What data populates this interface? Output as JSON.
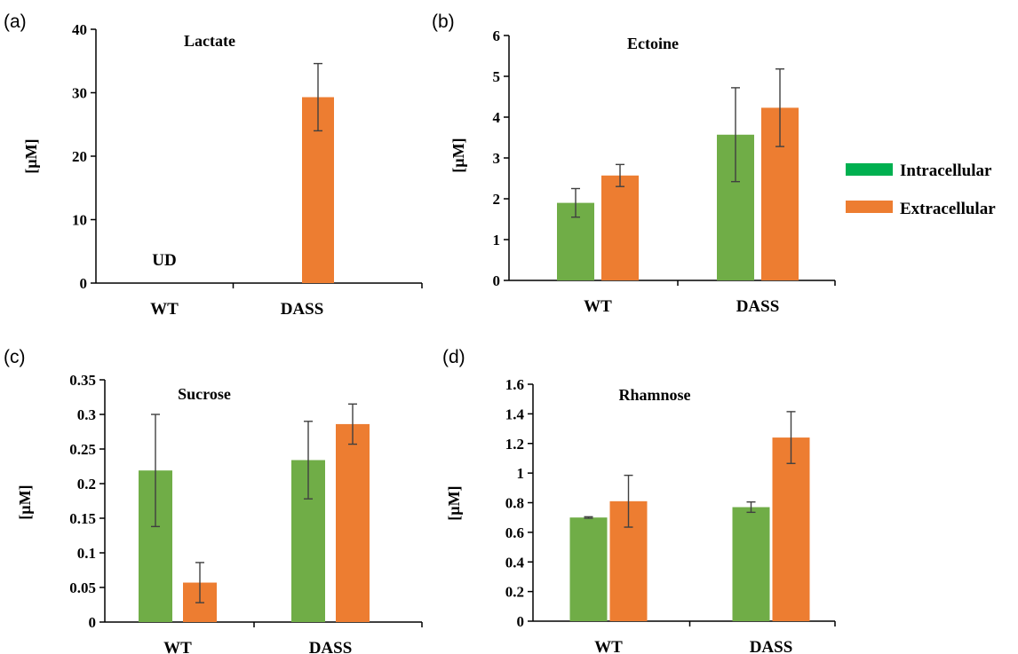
{
  "legend": {
    "items": [
      {
        "label": "Intracellular",
        "color": "#00B050"
      },
      {
        "label": "Extracellular",
        "color": "#ED7D31"
      }
    ]
  },
  "colors": {
    "intracellular": "#70AD47",
    "extracellular": "#ED7D31",
    "error_bar": "#404040"
  },
  "chart_data": [
    {
      "panel": "(a)",
      "type": "bar",
      "title": "Lactate",
      "ylabel": "[µM]",
      "categories": [
        "WT",
        "DASS"
      ],
      "ylim": [
        0,
        40
      ],
      "yticks": [
        "0",
        "10",
        "20",
        "30",
        "40"
      ],
      "series": [
        {
          "name": "Intracellular",
          "values": [
            null,
            null
          ],
          "errors": [
            null,
            null
          ]
        },
        {
          "name": "Extracellular",
          "values": [
            null,
            29.3
          ],
          "errors": [
            null,
            5.3
          ]
        }
      ],
      "annotations": [
        {
          "text": "UD",
          "category": "WT"
        }
      ]
    },
    {
      "panel": "(b)",
      "type": "bar",
      "title": "Ectoine",
      "ylabel": "[µM]",
      "categories": [
        "WT",
        "DASS"
      ],
      "ylim": [
        0,
        6
      ],
      "yticks": [
        "0",
        "1",
        "2",
        "3",
        "4",
        "5",
        "6"
      ],
      "series": [
        {
          "name": "Intracellular",
          "values": [
            1.9,
            3.57
          ],
          "errors": [
            0.35,
            1.15
          ]
        },
        {
          "name": "Extracellular",
          "values": [
            2.57,
            4.23
          ],
          "errors": [
            0.27,
            0.95
          ]
        }
      ]
    },
    {
      "panel": "(c)",
      "type": "bar",
      "title": "Sucrose",
      "ylabel": "[µM]",
      "categories": [
        "WT",
        "DASS"
      ],
      "ylim": [
        0,
        0.35
      ],
      "yticks": [
        "0",
        "0.05",
        "0.1",
        "0.15",
        "0.2",
        "0.25",
        "0.3",
        "0.35"
      ],
      "series": [
        {
          "name": "Intracellular",
          "values": [
            0.219,
            0.234
          ],
          "errors": [
            0.081,
            0.056
          ]
        },
        {
          "name": "Extracellular",
          "values": [
            0.057,
            0.286
          ],
          "errors": [
            0.029,
            0.029
          ]
        }
      ]
    },
    {
      "panel": "(d)",
      "type": "bar",
      "title": "Rhamnose",
      "ylabel": "[µM]",
      "categories": [
        "WT",
        "DASS"
      ],
      "ylim": [
        0,
        1.6
      ],
      "yticks": [
        "0",
        "0.2",
        "0.4",
        "0.6",
        "0.8",
        "1",
        "1.2",
        "1.4",
        "1.6"
      ],
      "series": [
        {
          "name": "Intracellular",
          "values": [
            0.7,
            0.77
          ],
          "errors": [
            0.005,
            0.035
          ]
        },
        {
          "name": "Extracellular",
          "values": [
            0.81,
            1.24
          ],
          "errors": [
            0.175,
            0.175
          ]
        }
      ]
    }
  ]
}
